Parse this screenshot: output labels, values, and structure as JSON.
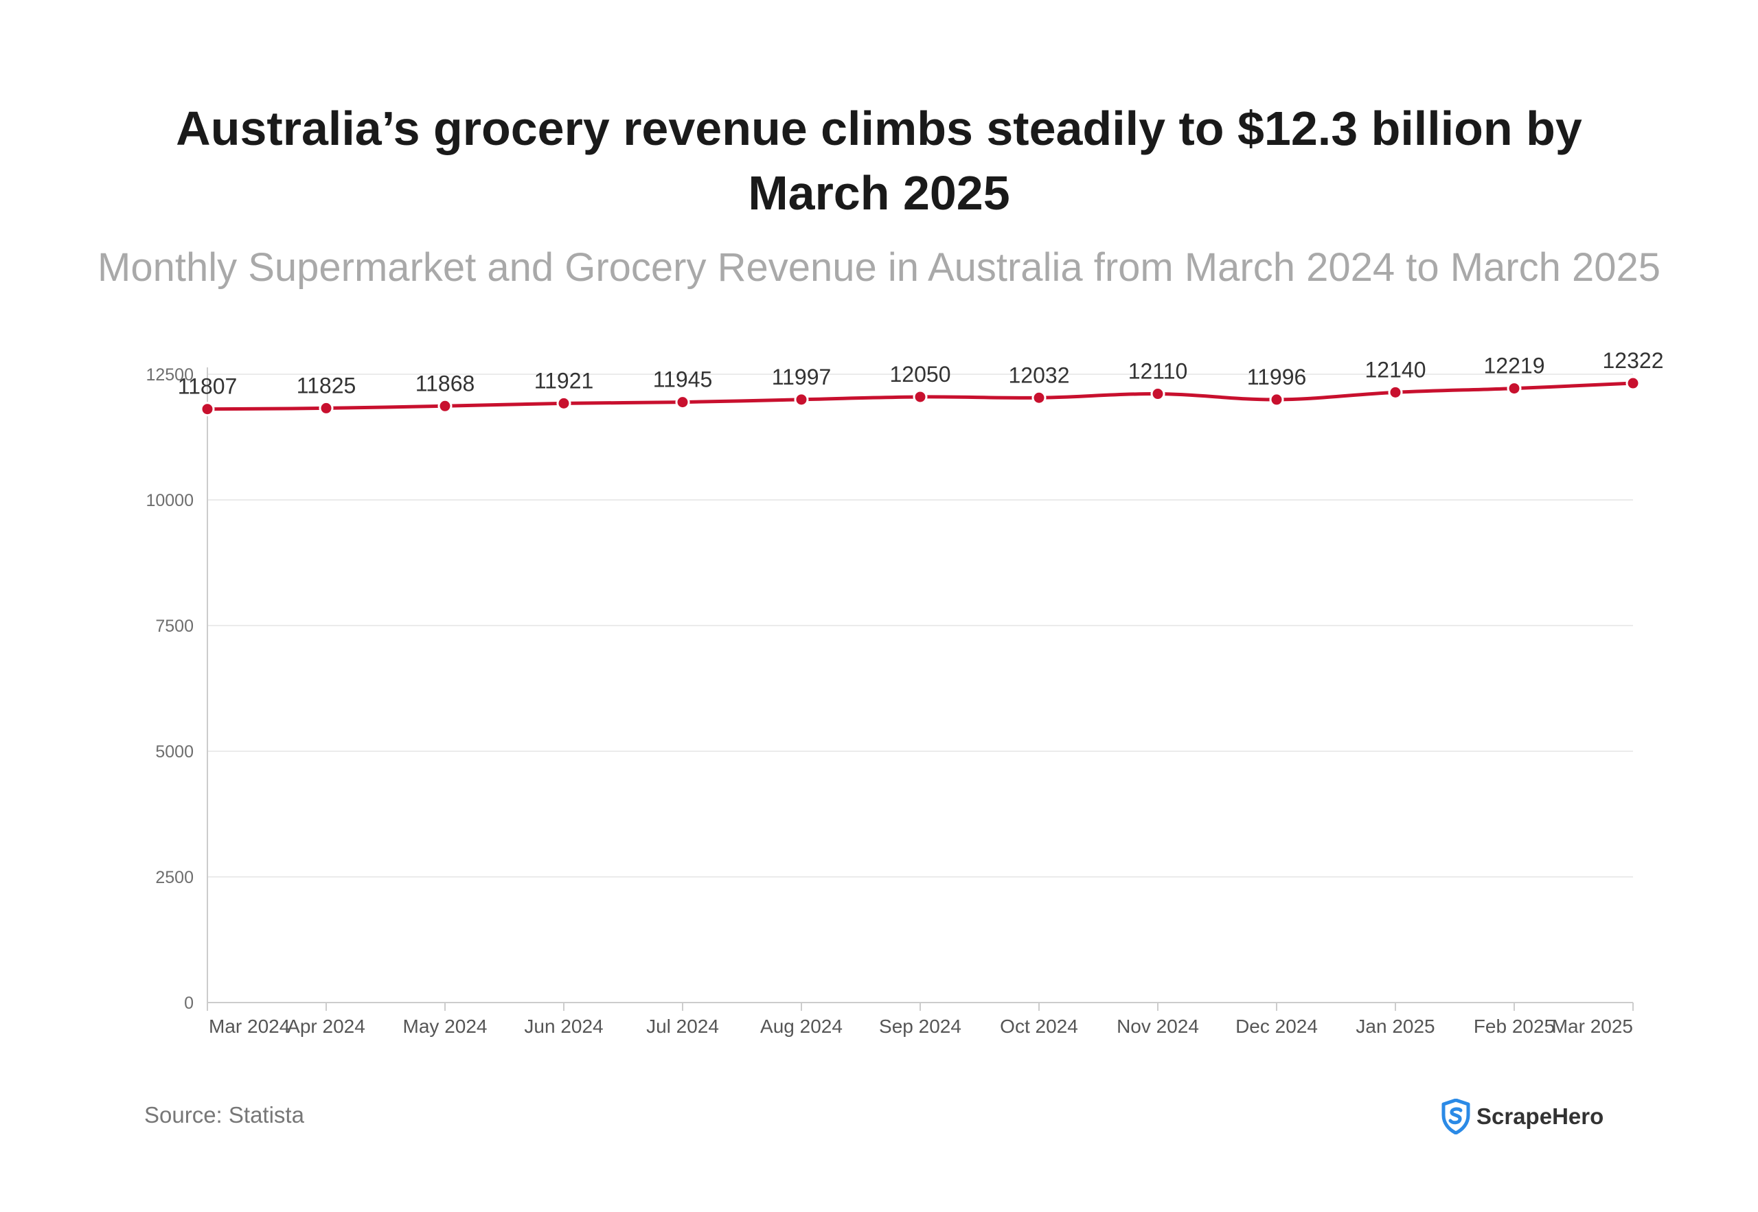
{
  "title": "Australia’s grocery revenue climbs steadily to $12.3 billion by March 2025",
  "subtitle": "Monthly Supermarket and Grocery Revenue in Australia from March 2024 to March 2025",
  "source": "Source: Statista",
  "brand": {
    "name": "ScrapeHero",
    "logo_icon": "shield-s-logo-icon",
    "logo_color": "#2b8ae6"
  },
  "chart_data": {
    "type": "line",
    "categories": [
      "Mar 2024",
      "Apr 2024",
      "May 2024",
      "Jun 2024",
      "Jul 2024",
      "Aug 2024",
      "Sep 2024",
      "Oct 2024",
      "Nov 2024",
      "Dec 2024",
      "Jan 2025",
      "Feb 2025",
      "Mar 2025"
    ],
    "series": [
      {
        "values": [
          11807,
          11825,
          11868,
          11921,
          11945,
          11997,
          12050,
          12032,
          12110,
          11996,
          12140,
          12219,
          12322
        ],
        "color": "#c8102e"
      }
    ],
    "data_labels": [
      "11807",
      "11825",
      "11868",
      "11921",
      "11945",
      "11997",
      "12050",
      "12032",
      "12110",
      "11996",
      "12140",
      "12219",
      "12322"
    ],
    "y_ticks": [
      0,
      2500,
      5000,
      7500,
      10000,
      12500
    ],
    "y_tick_labels": [
      "0",
      "2500",
      "5000",
      "7500",
      "10000",
      "12500"
    ],
    "ylim": [
      0,
      12500
    ],
    "xlabel": "",
    "ylabel": "",
    "grid": true,
    "legend": false
  }
}
